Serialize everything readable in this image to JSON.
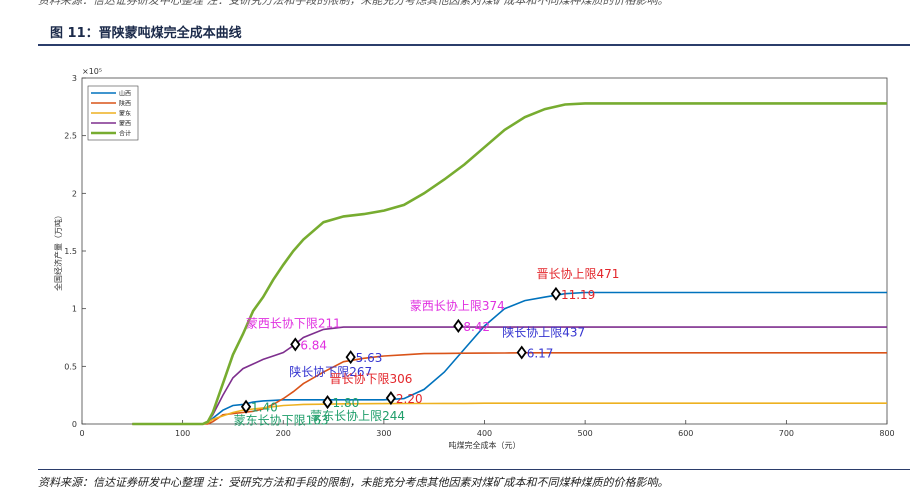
{
  "top_note": "资料来源：信达证券研发中心整理 注：受研究方法和手段的限制，未能充分考虑其他因素对煤矿成本和不同煤种煤质的价格影响。",
  "figure_title": "图 11：晋陕蒙吨煤完全成本曲线",
  "source_note": "资料来源：信达证券研发中心整理 注：受研究方法和手段的限制，未能充分考虑其他因素对煤矿成本和不同煤种煤质的价格影响。",
  "chart_data": {
    "type": "line",
    "x_label": "吨煤完全成本（元）",
    "y_label": "全国经济产量（万吨）",
    "y_scale_label": "×10⁵",
    "xlim": [
      0,
      800
    ],
    "xticks": [
      0,
      100,
      200,
      300,
      400,
      500,
      600,
      700,
      800
    ],
    "ylim": [
      0,
      3
    ],
    "yticks": [
      0,
      0.5,
      1,
      1.5,
      2,
      2.5,
      3
    ],
    "legend": "upper left",
    "x": [
      50,
      120,
      125,
      130,
      140,
      150,
      160,
      170,
      180,
      190,
      200,
      210,
      220,
      240,
      260,
      280,
      300,
      320,
      340,
      360,
      380,
      400,
      420,
      440,
      460,
      480,
      500,
      550,
      800
    ],
    "series": [
      {
        "name": "山西",
        "color": "#0072bd",
        "values": [
          0,
          0,
          0.01,
          0.05,
          0.12,
          0.16,
          0.17,
          0.19,
          0.2,
          0.205,
          0.21,
          0.21,
          0.21,
          0.21,
          0.21,
          0.21,
          0.21,
          0.22,
          0.3,
          0.45,
          0.65,
          0.85,
          1.0,
          1.07,
          1.1,
          1.13,
          1.14,
          1.14,
          1.14
        ]
      },
      {
        "name": "陕西",
        "color": "#d95319",
        "values": [
          0,
          0,
          0,
          0.02,
          0.08,
          0.09,
          0.1,
          0.11,
          0.13,
          0.17,
          0.22,
          0.28,
          0.35,
          0.45,
          0.54,
          0.57,
          0.59,
          0.6,
          0.61,
          0.612,
          0.614,
          0.615,
          0.616,
          0.617,
          0.617,
          0.617,
          0.617,
          0.617,
          0.617
        ]
      },
      {
        "name": "蒙东",
        "color": "#edb120",
        "values": [
          0,
          0,
          0.01,
          0.04,
          0.07,
          0.1,
          0.12,
          0.13,
          0.14,
          0.15,
          0.16,
          0.165,
          0.17,
          0.172,
          0.175,
          0.176,
          0.177,
          0.178,
          0.178,
          0.179,
          0.179,
          0.18,
          0.18,
          0.18,
          0.18,
          0.18,
          0.18,
          0.18,
          0.18
        ]
      },
      {
        "name": "蒙西",
        "color": "#7e2f8e",
        "values": [
          0,
          0,
          0.02,
          0.08,
          0.25,
          0.4,
          0.48,
          0.52,
          0.56,
          0.59,
          0.62,
          0.68,
          0.75,
          0.82,
          0.84,
          0.84,
          0.84,
          0.84,
          0.84,
          0.84,
          0.84,
          0.84,
          0.84,
          0.84,
          0.84,
          0.84,
          0.84,
          0.84,
          0.84
        ]
      },
      {
        "name": "合计",
        "color": "#77ac30",
        "values": [
          0,
          0,
          0.02,
          0.1,
          0.35,
          0.6,
          0.78,
          0.98,
          1.1,
          1.25,
          1.38,
          1.5,
          1.6,
          1.75,
          1.8,
          1.82,
          1.85,
          1.9,
          2.0,
          2.12,
          2.25,
          2.4,
          2.55,
          2.66,
          2.73,
          2.77,
          2.78,
          2.78,
          2.78
        ]
      }
    ],
    "annotations": [
      {
        "x": 471,
        "y": 1.128,
        "label": "晋长协上限471",
        "value_label": "11.19",
        "color": "#e3262b"
      },
      {
        "x": 374,
        "y": 0.85,
        "label": "蒙西长协上限374",
        "value_label": "8.42",
        "color": "#e030e0"
      },
      {
        "x": 437,
        "y": 0.62,
        "label": "陕长协上限437",
        "value_label": "6.17",
        "color": "#3535d0"
      },
      {
        "x": 212,
        "y": 0.69,
        "label": "蒙西长协下限211",
        "value_label": "6.84",
        "color": "#e030e0"
      },
      {
        "x": 267,
        "y": 0.58,
        "label": "陕长协下限267",
        "value_label": "5.63",
        "color": "#3535d0"
      },
      {
        "x": 307,
        "y": 0.225,
        "label": "晋长协下限306",
        "value_label": "2.20",
        "color": "#e3262b"
      },
      {
        "x": 163,
        "y": 0.15,
        "label": "蒙东长协下限163",
        "value_label": "1.40",
        "color": "#1f9e6a"
      },
      {
        "x": 244,
        "y": 0.19,
        "label": "蒙东长协上限244",
        "value_label": "1.80",
        "color": "#1f9e6a"
      }
    ]
  }
}
